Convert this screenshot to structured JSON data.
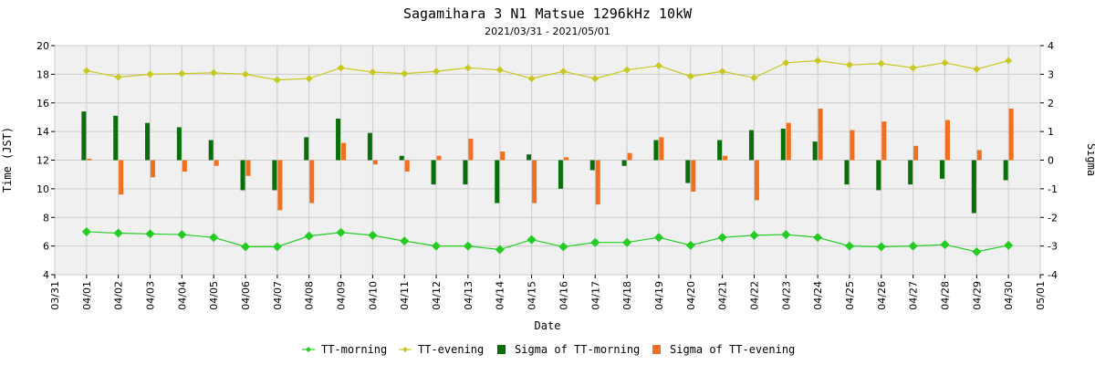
{
  "chart_data": {
    "type": "line",
    "title": "Sagamihara 3 N1 Matsue 1296kHz 10kW",
    "subtitle": "2021/03/31 - 2021/05/01",
    "xlabel": "Date",
    "ylabel": "Time (JST)",
    "y2label": "Sigma",
    "ylim": [
      4,
      20
    ],
    "y_ticks": [
      "4",
      "6",
      "8",
      "10",
      "12",
      "14",
      "16",
      "18",
      "20"
    ],
    "y2lim": [
      -4,
      4
    ],
    "y2_ticks": [
      "-4",
      "-3",
      "-2",
      "-1",
      "0",
      "1",
      "2",
      "3",
      "4"
    ],
    "grid": true,
    "legend_position": "bottom",
    "categories": [
      "03/31",
      "04/01",
      "04/02",
      "04/03",
      "04/04",
      "04/05",
      "04/06",
      "04/07",
      "04/08",
      "04/09",
      "04/10",
      "04/11",
      "04/12",
      "04/13",
      "04/14",
      "04/15",
      "04/16",
      "04/17",
      "04/18",
      "04/19",
      "04/20",
      "04/21",
      "04/22",
      "04/23",
      "04/24",
      "04/25",
      "04/26",
      "04/27",
      "04/28",
      "04/29",
      "04/30",
      "05/01"
    ],
    "series": [
      {
        "name": "TT-morning",
        "axis": "left",
        "kind": "line",
        "color": "#22cc22",
        "values": [
          null,
          7.0,
          6.9,
          6.85,
          6.8,
          6.6,
          5.95,
          5.95,
          6.7,
          6.95,
          6.75,
          6.35,
          6.0,
          6.0,
          5.75,
          6.45,
          5.95,
          6.25,
          6.25,
          6.6,
          6.05,
          6.6,
          6.75,
          6.8,
          6.6,
          6.0,
          5.95,
          6.0,
          6.1,
          5.6,
          6.05,
          null
        ]
      },
      {
        "name": "TT-evening",
        "axis": "left",
        "kind": "line",
        "color": "#c8c820",
        "values": [
          null,
          18.25,
          17.8,
          18.0,
          18.05,
          18.1,
          18.0,
          17.6,
          17.7,
          18.45,
          18.15,
          18.05,
          18.2,
          18.45,
          18.3,
          17.7,
          18.2,
          17.7,
          18.3,
          18.6,
          17.85,
          18.2,
          17.75,
          18.8,
          18.95,
          18.65,
          18.75,
          18.45,
          18.8,
          18.35,
          18.95,
          null
        ]
      },
      {
        "name": "Sigma of TT-morning",
        "axis": "right",
        "kind": "bar",
        "color": "#0a6e0a",
        "values": [
          null,
          1.7,
          1.55,
          1.3,
          1.15,
          0.7,
          -1.05,
          -1.05,
          0.8,
          1.45,
          0.95,
          0.15,
          -0.85,
          -0.85,
          -1.5,
          0.2,
          -1.0,
          -0.35,
          -0.2,
          0.7,
          -0.8,
          0.7,
          1.05,
          1.1,
          0.65,
          -0.85,
          -1.05,
          -0.85,
          -0.65,
          -1.85,
          -0.7,
          null
        ]
      },
      {
        "name": "Sigma of TT-evening",
        "axis": "right",
        "kind": "bar",
        "color": "#f07020",
        "values": [
          null,
          0.05,
          -1.2,
          -0.6,
          -0.4,
          -0.2,
          -0.55,
          -1.75,
          -1.5,
          0.6,
          -0.15,
          -0.4,
          0.15,
          0.75,
          0.3,
          -1.5,
          0.1,
          -1.55,
          0.25,
          0.8,
          -1.1,
          0.15,
          -1.4,
          1.3,
          1.8,
          1.05,
          1.35,
          0.5,
          1.4,
          0.35,
          1.8,
          null
        ]
      }
    ]
  }
}
